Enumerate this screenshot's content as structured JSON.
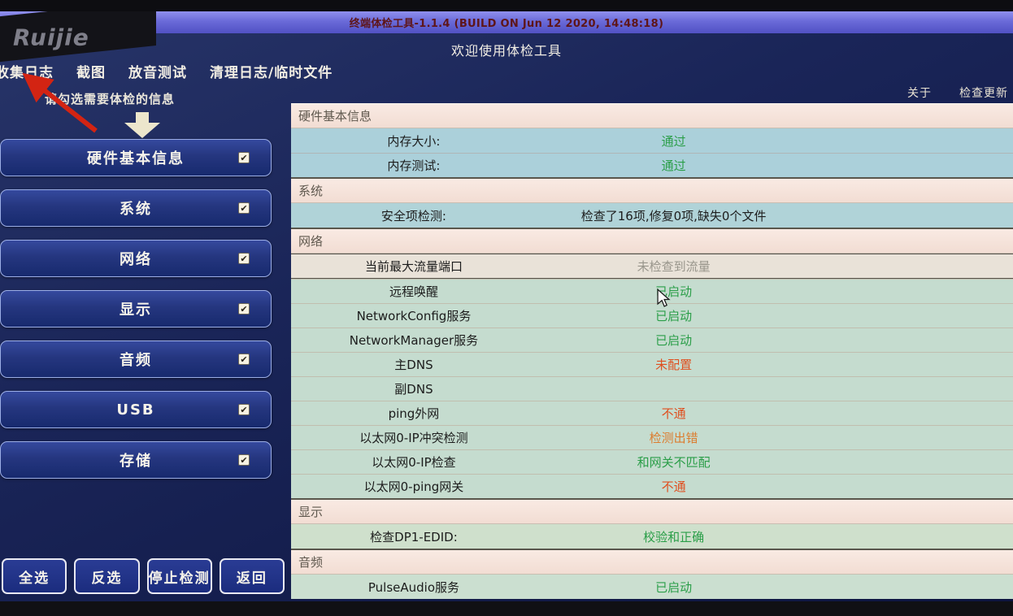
{
  "window": {
    "brand": "Ruijie",
    "title": "终端体检工具-1.1.4 (BUILD ON Jun 12 2020, 14:48:18)",
    "welcome": "欢迎使用体检工具"
  },
  "menu": {
    "items": [
      "收集日志",
      "截图",
      "放音测试",
      "清理日志/临时文件"
    ]
  },
  "links": [
    "关于",
    "检查更新"
  ],
  "sidebar": {
    "hint": "请勾选需要体检的信息",
    "items": [
      {
        "label": "硬件基本信息",
        "checked": true
      },
      {
        "label": "系统",
        "checked": true
      },
      {
        "label": "网络",
        "checked": true
      },
      {
        "label": "显示",
        "checked": true
      },
      {
        "label": "音频",
        "checked": true
      },
      {
        "label": "USB",
        "checked": true
      },
      {
        "label": "存储",
        "checked": true
      }
    ],
    "actions": [
      "全选",
      "反选",
      "停止检测",
      "返回"
    ]
  },
  "results": {
    "sections": [
      {
        "title": "硬件基本信息",
        "row_bg": "#abd0da",
        "rows": [
          {
            "label": "内存大小:",
            "value": "通过",
            "status": "ok"
          },
          {
            "label": "内存测试:",
            "value": "通过",
            "status": "ok"
          }
        ]
      },
      {
        "title": "系统",
        "row_bg": "#b0d3d8",
        "rows": [
          {
            "label": "安全项检测:",
            "value": "检查了16项,修复0项,缺失0个文件",
            "status": "plain"
          }
        ]
      },
      {
        "title": "网络",
        "row_bg": "#c5dccf",
        "rows": [
          {
            "label": "当前最大流量端口",
            "value": "未检查到流量",
            "status": "muted",
            "highlight": true
          },
          {
            "label": "远程唤醒",
            "value": "已启动",
            "status": "ok"
          },
          {
            "label": "NetworkConfig服务",
            "value": "已启动",
            "status": "ok"
          },
          {
            "label": "NetworkManager服务",
            "value": "已启动",
            "status": "ok"
          },
          {
            "label": "主DNS",
            "value": "未配置",
            "status": "err"
          },
          {
            "label": "副DNS",
            "value": "",
            "status": "plain"
          },
          {
            "label": "ping外网",
            "value": "不通",
            "status": "err"
          },
          {
            "label": "以太网0-IP冲突检测",
            "value": "检测出错",
            "status": "warn"
          },
          {
            "label": "以太网0-IP检查",
            "value": "和网关不匹配",
            "status": "ok"
          },
          {
            "label": "以太网0-ping网关",
            "value": "不通",
            "status": "err"
          }
        ]
      },
      {
        "title": "显示",
        "row_bg": "#cfe0cc",
        "rows": [
          {
            "label": "检查DP1-EDID:",
            "value": "校验和正确",
            "status": "ok"
          }
        ]
      },
      {
        "title": "音频",
        "row_bg": "#cbdfd0",
        "rows": [
          {
            "label": "PulseAudio服务",
            "value": "已启动",
            "status": "ok"
          }
        ]
      }
    ]
  },
  "colors": {
    "accent_ok": "#2a9e48",
    "accent_error": "#df5020",
    "accent_warn": "#dc7c2e",
    "accent_muted": "#98958b",
    "titlebar": "#6a6ad8",
    "app_bg": "#1a2558",
    "section_header_bg": "#f5e2d9"
  }
}
